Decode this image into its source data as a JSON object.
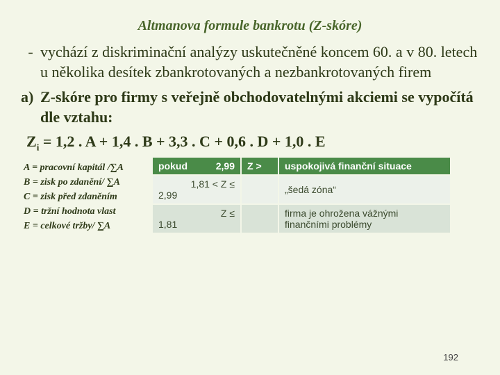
{
  "title": "Altmanova formule bankrotu (Z-skóre)",
  "bullet_dash": "-",
  "bullet_text": "vychází z diskriminační analýzy uskutečněné koncem 60. a v 80. letech u několika desítek zbankrotovaných a nezbankrotovaných firem",
  "letter_a": "a)",
  "letter_a_text": "Z-skóre pro firmy s veřejně obchodovatelnými akciemi se vypočítá dle vztahu:",
  "formula_pre": "Z",
  "formula_sub": "i",
  "formula_post": " = 1,2 . A + 1,4 . B + 3,3 . C + 0,6 . D + 1,0 . E",
  "defs": {
    "A": "A = pracovní kapitál /∑A",
    "B": "B = zisk po zdanění/ ∑A",
    "C": "C = zisk před zdaněním",
    "D": "D = tržní hodnota vlast",
    "E": "E = celkové tržby/ ∑A"
  },
  "table": {
    "header": {
      "c1": "pokud",
      "c2": "Z >",
      "c3": "uspokojivá finanční situace"
    },
    "rows": [
      {
        "c1": "2,99",
        "c1b": "1,81 < Z ≤",
        "c3": "„šedá zóna“"
      },
      {
        "c1": "2,99",
        "c1b": "Z ≤",
        "c3": "firma je ohrožena vážnými finančními problémy"
      },
      {
        "c1": "1,81",
        "c1b": "",
        "c3": ""
      }
    ]
  },
  "page": "192"
}
